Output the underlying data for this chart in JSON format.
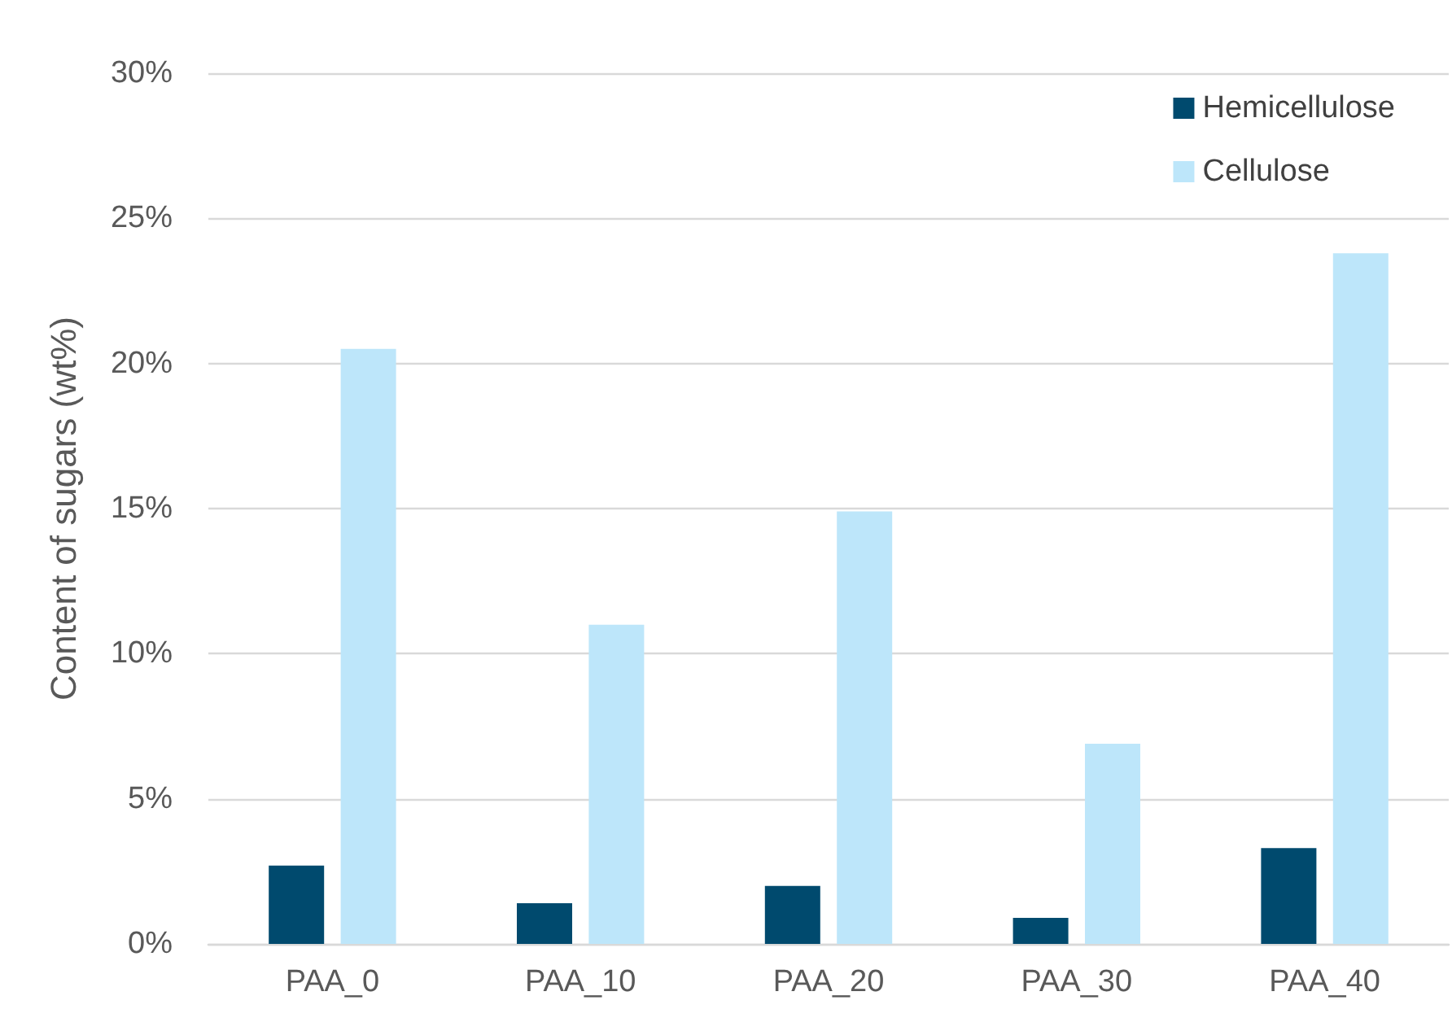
{
  "chart_data": {
    "type": "bar",
    "ylabel": "Content of sugars (wt%)",
    "categories": [
      "PAA_0",
      "PAA_10",
      "PAA_20",
      "PAA_30",
      "PAA_40"
    ],
    "series": [
      {
        "name": "Hemicellulose",
        "color": "#004a6e",
        "values": [
          2.7,
          1.4,
          2.0,
          0.9,
          3.3
        ]
      },
      {
        "name": "Cellulose",
        "color": "#bde6fa",
        "values": [
          20.5,
          11.0,
          14.9,
          6.9,
          23.8
        ]
      }
    ],
    "ylim": [
      0,
      30
    ],
    "yticks": [
      {
        "value": 0,
        "label": "0%"
      },
      {
        "value": 5,
        "label": "5%"
      },
      {
        "value": 10,
        "label": "10%"
      },
      {
        "value": 15,
        "label": "15%"
      },
      {
        "value": 20,
        "label": "20%"
      },
      {
        "value": 25,
        "label": "25%"
      },
      {
        "value": 30,
        "label": "30%"
      }
    ],
    "grid": "y",
    "legend": "top right"
  }
}
